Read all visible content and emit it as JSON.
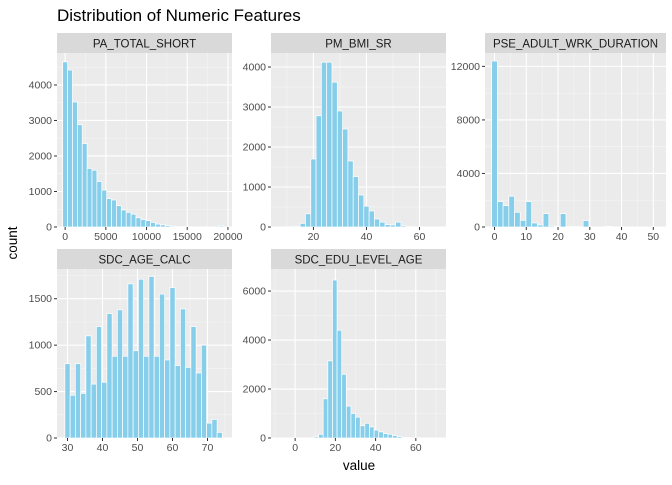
{
  "chart_data": {
    "type": "bar",
    "title": "Distribution of Numeric Features",
    "xlabel": "value",
    "ylabel": "count",
    "bar_color": "#87ceeb",
    "panel_bg": "#ebebeb",
    "strip_bg": "#d9d9d9",
    "grid": true,
    "facets": [
      {
        "name": "PA_TOTAL_SHORT",
        "xlim": [
          -1000,
          20500
        ],
        "ylim": [
          0,
          4900
        ],
        "xticks": [
          0,
          5000,
          10000,
          15000,
          20000
        ],
        "yticks": [
          0,
          1000,
          2000,
          3000,
          4000
        ],
        "bin_width": 600,
        "x": [
          0,
          600,
          1200,
          1800,
          2400,
          3000,
          3600,
          4200,
          4800,
          5400,
          6000,
          6600,
          7200,
          7800,
          8400,
          9000,
          9600,
          10200,
          10800,
          11400,
          12000,
          12600,
          13200,
          13800,
          14400,
          15000,
          15600,
          16200,
          16800,
          17400,
          18000,
          18600,
          19200
        ],
        "values": [
          4650,
          4420,
          3520,
          2880,
          2350,
          1650,
          1600,
          1280,
          1040,
          800,
          760,
          600,
          480,
          410,
          360,
          260,
          210,
          180,
          130,
          80,
          60,
          40,
          25,
          15,
          10,
          8,
          6,
          5,
          4,
          3,
          3,
          2,
          30
        ]
      },
      {
        "name": "PM_BMI_SR",
        "xlim": [
          4,
          70
        ],
        "ylim": [
          0,
          4350
        ],
        "xticks": [
          20,
          40,
          60
        ],
        "yticks": [
          0,
          1000,
          2000,
          3000,
          4000
        ],
        "bin_width": 2,
        "x": [
          12,
          14,
          16,
          18,
          20,
          22,
          24,
          26,
          28,
          30,
          32,
          34,
          36,
          38,
          40,
          42,
          44,
          46,
          48,
          50,
          52,
          54,
          56,
          58,
          60
        ],
        "values": [
          5,
          20,
          90,
          330,
          1700,
          2780,
          4120,
          4120,
          3620,
          2900,
          2450,
          1650,
          1260,
          800,
          520,
          400,
          200,
          120,
          60,
          50,
          120,
          30,
          10,
          5,
          3
        ]
      },
      {
        "name": "PSE_ADULT_WRK_DURATION",
        "xlim": [
          -3,
          54
        ],
        "ylim": [
          0,
          13000
        ],
        "xticks": [
          0,
          10,
          20,
          30,
          40,
          50
        ],
        "yticks": [
          0,
          4000,
          8000,
          12000
        ],
        "bin_width": 1.8,
        "x": [
          0,
          1.8,
          3.6,
          5.4,
          7.2,
          9,
          10.8,
          12.6,
          14.4,
          16.2,
          18,
          19.8,
          21.6,
          23.4,
          25.2,
          27,
          28.8,
          30.6,
          32.4,
          34.2,
          36,
          37.8,
          39.6,
          41.4,
          43.2,
          45,
          46.8,
          48.6,
          50.4
        ],
        "values": [
          12400,
          1900,
          1600,
          2300,
          1100,
          500,
          1900,
          300,
          150,
          1000,
          80,
          50,
          1000,
          40,
          30,
          20,
          480,
          20,
          10,
          10,
          50,
          10,
          5,
          5,
          5,
          5,
          5,
          5,
          5
        ]
      },
      {
        "name": "SDC_AGE_CALC",
        "xlim": [
          27,
          77
        ],
        "ylim": [
          0,
          1820
        ],
        "xticks": [
          30,
          40,
          50,
          60,
          70
        ],
        "yticks": [
          0,
          500,
          1000,
          1500
        ],
        "bin_width": 1.5,
        "x": [
          30,
          31.5,
          33,
          34.5,
          36,
          37.5,
          39,
          40.5,
          42,
          43.5,
          45,
          46.5,
          48,
          49.5,
          51,
          52.5,
          54,
          55.5,
          57,
          58.5,
          60,
          61.5,
          63,
          64.5,
          66,
          67.5,
          69,
          70.5,
          72,
          73.5
        ],
        "values": [
          800,
          460,
          800,
          480,
          1100,
          580,
          1200,
          600,
          1340,
          880,
          1380,
          880,
          1660,
          940,
          1710,
          880,
          1740,
          880,
          1550,
          840,
          1620,
          780,
          1390,
          760,
          1200,
          700,
          1000,
          160,
          200,
          60
        ]
      },
      {
        "name": "SDC_EDU_LEVEL_AGE",
        "xlim": [
          -12,
          75
        ],
        "ylim": [
          0,
          6900
        ],
        "xticks": [
          0,
          20,
          40,
          60
        ],
        "yticks": [
          0,
          2000,
          4000,
          6000
        ],
        "bin_width": 2.3,
        "x": [
          10.5,
          12.8,
          15.1,
          17.4,
          19.7,
          22,
          24.3,
          26.6,
          28.9,
          31.2,
          33.5,
          35.8,
          38.1,
          40.4,
          42.7,
          45,
          47.3,
          49.6,
          51.9,
          54.2,
          56.5,
          58.8,
          61.1,
          63.4
        ],
        "values": [
          50,
          150,
          1600,
          3150,
          6450,
          4400,
          2600,
          1300,
          1000,
          850,
          500,
          600,
          450,
          320,
          250,
          180,
          150,
          100,
          60,
          30,
          20,
          10,
          5,
          3
        ]
      }
    ]
  }
}
